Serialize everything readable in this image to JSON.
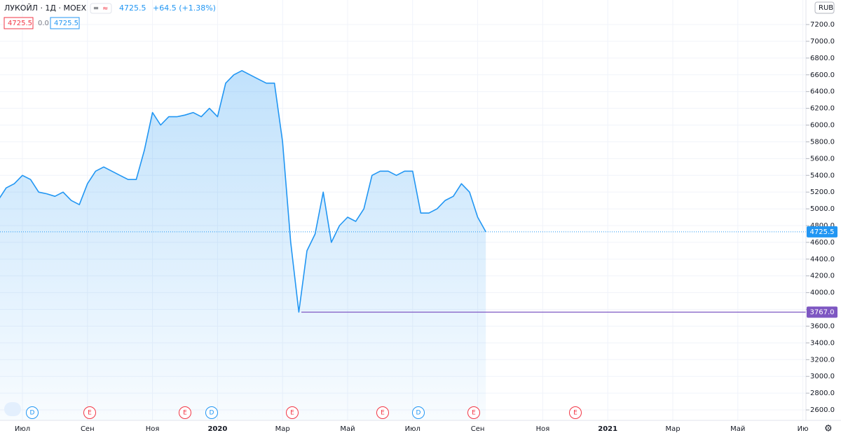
{
  "chart_data": {
    "type": "area",
    "header": {
      "title": "ЛУКОЙЛ · 1Д · MOEX",
      "price": "4725.5",
      "change": "+64.5 (+1.38%)",
      "boxes": [
        "4725.5",
        "0.0",
        "4725.5"
      ],
      "currency": "RUB"
    },
    "categories": [
      null,
      null,
      null,
      "Июл",
      null,
      null,
      null,
      null,
      null,
      null,
      null,
      "Сен",
      null,
      null,
      null,
      null,
      null,
      null,
      null,
      "Ноя",
      null,
      null,
      null,
      null,
      null,
      null,
      null,
      "2020",
      null,
      null,
      null,
      null,
      null,
      null,
      null,
      "Мар",
      null,
      null,
      null,
      null,
      null,
      null,
      null,
      "Май",
      null,
      null,
      null,
      null,
      null,
      null,
      null,
      "Июл",
      null,
      null,
      null,
      null,
      null,
      null,
      null,
      "Сен",
      null,
      null,
      null,
      null,
      null,
      null,
      null,
      "Ноя",
      null,
      null,
      null,
      null,
      null,
      null,
      null,
      "2021",
      null,
      null,
      null,
      null,
      null,
      null,
      null,
      "Мар",
      null,
      null,
      null,
      null,
      null,
      null,
      null,
      "Май",
      null,
      null,
      null,
      null,
      null,
      null,
      null,
      "Ию"
    ],
    "series": [
      {
        "name": "ЛУКОЙЛ",
        "color": "#2196f3",
        "values": [
          5100,
          5250,
          5300,
          5400,
          5350,
          5200,
          5180,
          5150,
          5200,
          5100,
          5050,
          5300,
          5450,
          5500,
          5450,
          5400,
          5350,
          5350,
          5700,
          6150,
          6000,
          6100,
          6100,
          6120,
          6150,
          6100,
          6200,
          6100,
          6500,
          6600,
          6650,
          6600,
          6550,
          6500,
          6500,
          5800,
          4600,
          3767,
          4500,
          4700,
          5200,
          4600,
          4800,
          4900,
          4850,
          5000,
          5400,
          5450,
          5450,
          5400,
          5450,
          5450,
          4950,
          4950,
          5000,
          5100,
          5150,
          5300,
          5200,
          4900,
          4725.5,
          null,
          null,
          null,
          null,
          null,
          null,
          null,
          null,
          null,
          null,
          null,
          null,
          null,
          null,
          null,
          null,
          null,
          null,
          null,
          null,
          null,
          null,
          null,
          null,
          null,
          null,
          null,
          null,
          null,
          null,
          null,
          null,
          null,
          null,
          null,
          null,
          null,
          null,
          null
        ]
      }
    ],
    "ylim": [
      2475,
      7493
    ],
    "yticks": [
      {
        "value": 2600,
        "label": "2600.0"
      },
      {
        "value": 2800,
        "label": "2800.0"
      },
      {
        "value": 3000,
        "label": "3000.0"
      },
      {
        "value": 3200,
        "label": "3200.0"
      },
      {
        "value": 3400,
        "label": "3400.0"
      },
      {
        "value": 3600,
        "label": "3600.0"
      },
      {
        "value": 3800,
        "label": "3800.0"
      },
      {
        "value": 4000,
        "label": "4000.0"
      },
      {
        "value": 4200,
        "label": "4200.0"
      },
      {
        "value": 4400,
        "label": "4400.0"
      },
      {
        "value": 4600,
        "label": "4600.0"
      },
      {
        "value": 4800,
        "label": "4800.0"
      },
      {
        "value": 5000,
        "label": "5000.0"
      },
      {
        "value": 5200,
        "label": "5200.0"
      },
      {
        "value": 5400,
        "label": "5400.0"
      },
      {
        "value": 5600,
        "label": "5600.0"
      },
      {
        "value": 5800,
        "label": "5800.0"
      },
      {
        "value": 6000,
        "label": "6000.0"
      },
      {
        "value": 6200,
        "label": "6200.0"
      },
      {
        "value": 6400,
        "label": "6400.0"
      },
      {
        "value": 6600,
        "label": "6600.0"
      },
      {
        "value": 6800,
        "label": "6800.0"
      },
      {
        "value": 7000,
        "label": "7000.0"
      },
      {
        "value": 7200,
        "label": "7200.0"
      }
    ],
    "price_labels": [
      {
        "value": 4725.5,
        "label": "4725.5",
        "color": "#2196f3"
      },
      {
        "value": 3767,
        "label": "3767.0",
        "color": "#7e57c2"
      }
    ],
    "events": [
      "D",
      "E",
      "E",
      "D",
      "E",
      "E",
      "D",
      "E",
      "E"
    ],
    "grid": true
  }
}
